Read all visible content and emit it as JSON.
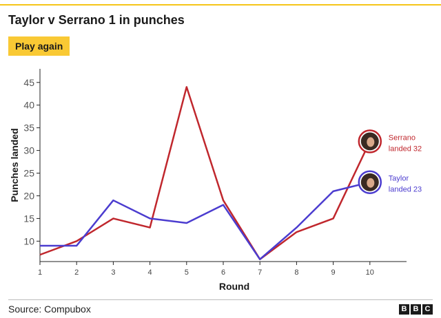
{
  "header": {
    "title": "Taylor v Serrano 1 in punches",
    "play_again_label": "Play again"
  },
  "chart_data": {
    "type": "line",
    "xlabel": "Round",
    "ylabel": "Punches landed",
    "x": [
      1,
      2,
      3,
      4,
      5,
      6,
      7,
      8,
      9,
      10
    ],
    "xlim": [
      1,
      11
    ],
    "ylim": [
      5.5,
      48
    ],
    "yticks": [
      10,
      15,
      20,
      25,
      30,
      35,
      40,
      45
    ],
    "grid": false,
    "series": [
      {
        "name": "Serrano",
        "color": "#c0272d",
        "values": [
          7,
          10,
          15,
          13,
          44,
          19,
          6,
          12,
          15,
          32
        ]
      },
      {
        "name": "Taylor",
        "color": "#4b3ccf",
        "values": [
          9,
          9,
          19,
          15,
          14,
          18,
          6,
          13,
          21,
          23
        ]
      }
    ],
    "annotations": [
      {
        "series": "Serrano",
        "line1": "Serrano",
        "line2": "landed 32",
        "color": "#c0272d"
      },
      {
        "series": "Taylor",
        "line1": "Taylor",
        "line2": "landed 23",
        "color": "#4b3ccf"
      }
    ]
  },
  "footer": {
    "source": "Source: Compubox",
    "logo_letters": [
      "B",
      "B",
      "C"
    ]
  },
  "colors": {
    "accent": "#f5c518",
    "button": "#f9c934"
  }
}
